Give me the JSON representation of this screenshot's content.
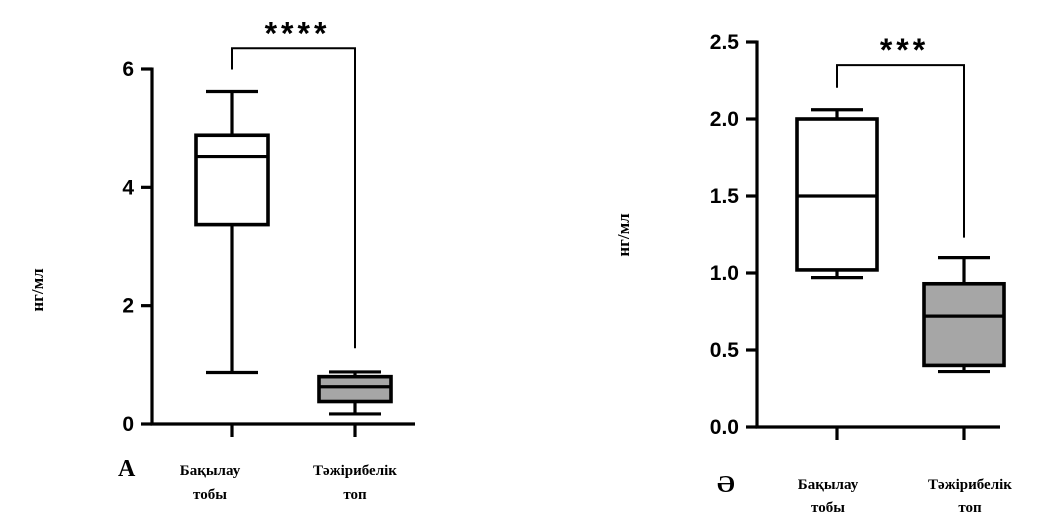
{
  "chart_data": [
    {
      "type": "box",
      "panel_label": "A",
      "ylabel": "нг/мл",
      "ylim": [
        0,
        6
      ],
      "yticks": [
        "0",
        "2",
        "4",
        "6"
      ],
      "categories": [
        [
          "Бақылау",
          "тобы"
        ],
        [
          "Тәжірибелік",
          "топ"
        ]
      ],
      "boxes": [
        {
          "min": 0.87,
          "q1": 3.37,
          "median": 4.52,
          "q3": 4.88,
          "max": 5.62,
          "fill": "#ffffff"
        },
        {
          "min": 0.17,
          "q1": 0.38,
          "median": 0.63,
          "q3": 0.8,
          "max": 0.88,
          "fill": "#a6a6a6"
        }
      ],
      "significance": "****",
      "bracket_top": 6.35,
      "bracket_right_bottom": 1.28
    },
    {
      "type": "box",
      "panel_label": "Ә",
      "ylabel": "нг/мл",
      "ylim": [
        0,
        2.5
      ],
      "yticks": [
        "0.0",
        "0.5",
        "1.0",
        "1.5",
        "2.0",
        "2.5"
      ],
      "categories": [
        [
          "Бақылау",
          "тобы"
        ],
        [
          "Тәжірибелік",
          "топ"
        ]
      ],
      "boxes": [
        {
          "min": 0.97,
          "q1": 1.02,
          "median": 1.5,
          "q3": 2.0,
          "max": 2.06,
          "fill": "#ffffff"
        },
        {
          "min": 0.36,
          "q1": 0.4,
          "median": 0.72,
          "q3": 0.93,
          "max": 1.1,
          "fill": "#a6a6a6"
        }
      ],
      "significance": "***",
      "bracket_top": 2.35,
      "bracket_right_bottom": 1.23
    }
  ]
}
